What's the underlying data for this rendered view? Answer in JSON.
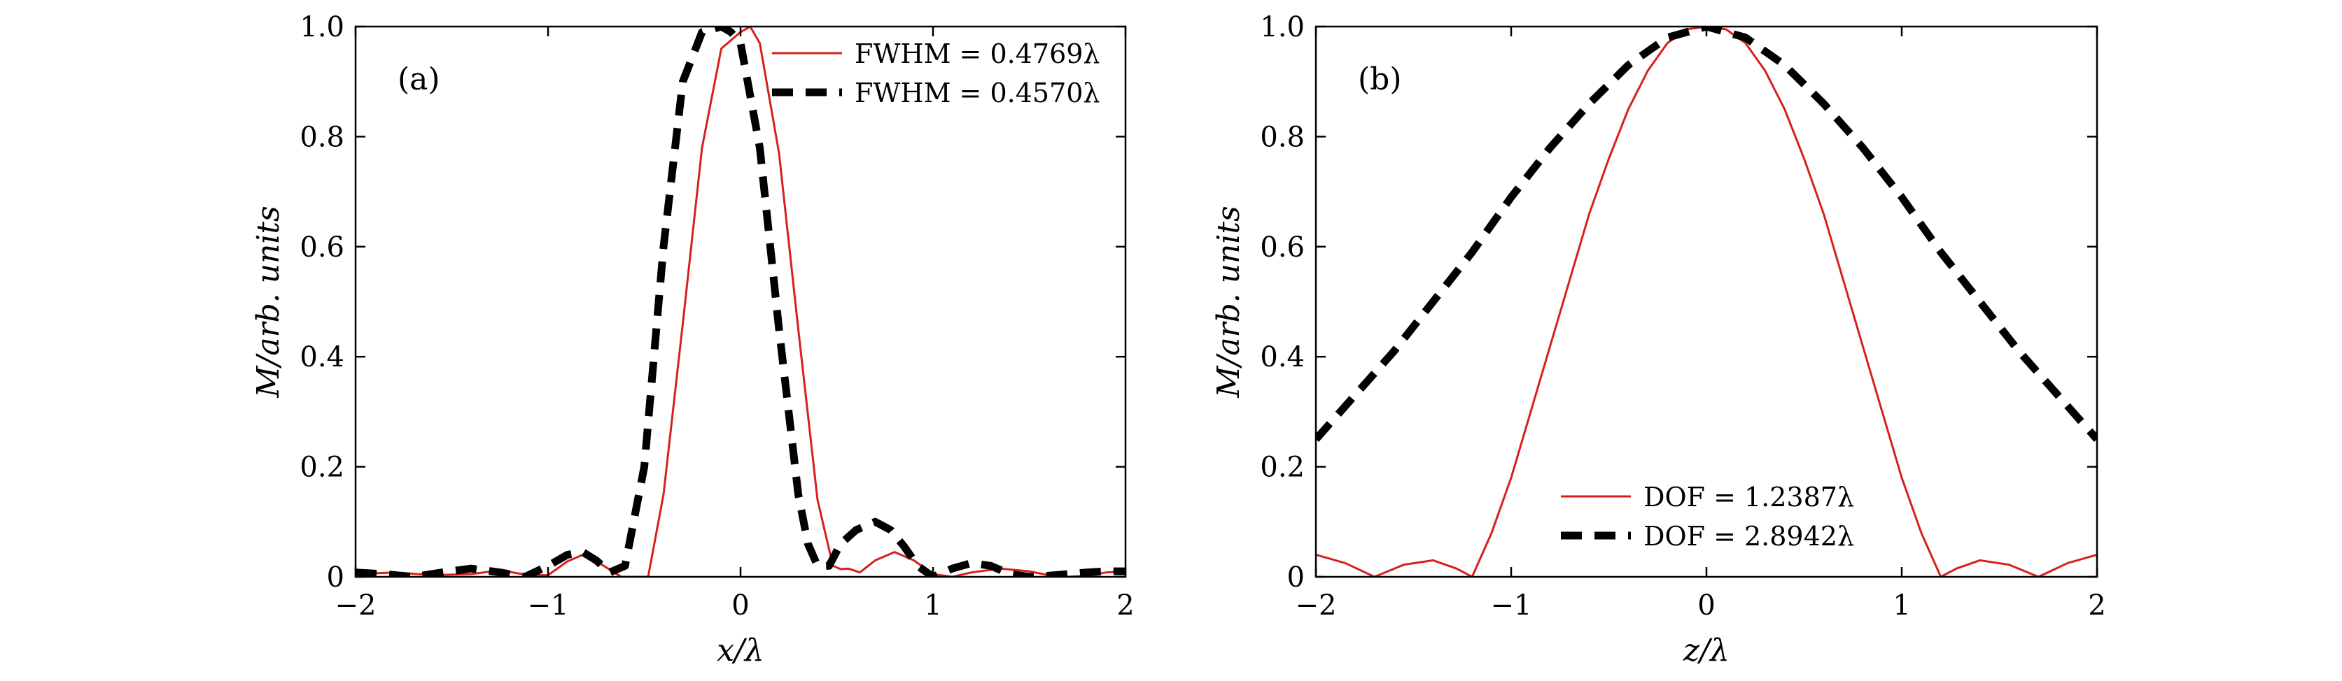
{
  "chart_data": [
    {
      "type": "line",
      "panel_label": "(a)",
      "xlabel": "x/λ",
      "ylabel": "M/arb. units",
      "xlim": [
        -2,
        2
      ],
      "ylim": [
        0,
        1
      ],
      "xticks": [
        -2,
        -1,
        0,
        1,
        2
      ],
      "xtick_labels": [
        "−2",
        "−1",
        "0",
        "1",
        "2"
      ],
      "yticks": [
        0,
        0.2,
        0.4,
        0.6,
        0.8,
        1.0
      ],
      "ytick_labels": [
        "0",
        "0.2",
        "0.4",
        "0.6",
        "0.8",
        "1.0"
      ],
      "legend_position": "top-right",
      "series": [
        {
          "name": "FWHM = 0.4769λ",
          "color": "#d62020",
          "style": "solid",
          "x": [
            -2.0,
            -1.8,
            -1.6,
            -1.4,
            -1.25,
            -1.1,
            -1.0,
            -0.9,
            -0.82,
            -0.72,
            -0.62,
            -0.54,
            -0.48,
            -0.4,
            -0.3,
            -0.2,
            -0.1,
            0.0,
            0.05,
            0.1,
            0.2,
            0.3,
            0.4,
            0.48,
            0.52,
            0.56,
            0.62,
            0.7,
            0.8,
            0.9,
            1.0,
            1.1,
            1.2,
            1.35,
            1.5,
            1.6,
            1.7,
            1.8,
            1.9,
            2.0
          ],
          "y": [
            0.005,
            0.008,
            0.003,
            0.005,
            0.012,
            0.003,
            0.003,
            0.028,
            0.04,
            0.022,
            0.0,
            0.0,
            0.0,
            0.15,
            0.46,
            0.78,
            0.96,
            0.99,
            1.0,
            0.97,
            0.77,
            0.45,
            0.14,
            0.02,
            0.014,
            0.015,
            0.008,
            0.03,
            0.045,
            0.03,
            0.005,
            0.0,
            0.008,
            0.015,
            0.01,
            0.003,
            0.0,
            0.002,
            0.008,
            0.01
          ]
        },
        {
          "name": "FWHM = 0.4570λ",
          "color": "#000000",
          "style": "dashed",
          "x": [
            -2.0,
            -1.85,
            -1.7,
            -1.55,
            -1.4,
            -1.25,
            -1.12,
            -1.0,
            -0.9,
            -0.82,
            -0.75,
            -0.68,
            -0.6,
            -0.5,
            -0.4,
            -0.3,
            -0.2,
            -0.1,
            -0.05,
            0.0,
            0.1,
            0.2,
            0.3,
            0.35,
            0.4,
            0.46,
            0.52,
            0.6,
            0.7,
            0.78,
            0.85,
            0.92,
            1.0,
            1.1,
            1.2,
            1.3,
            1.4,
            1.5,
            1.6,
            1.7,
            1.8,
            1.9,
            2.0
          ],
          "y": [
            0.008,
            0.005,
            0.0,
            0.008,
            0.015,
            0.008,
            0.0,
            0.02,
            0.04,
            0.045,
            0.03,
            0.008,
            0.02,
            0.2,
            0.6,
            0.9,
            0.99,
            1.0,
            0.99,
            0.97,
            0.78,
            0.45,
            0.15,
            0.06,
            0.02,
            0.02,
            0.06,
            0.085,
            0.1,
            0.085,
            0.055,
            0.02,
            0.0,
            0.015,
            0.025,
            0.02,
            0.005,
            0.0,
            0.002,
            0.005,
            0.008,
            0.01,
            0.01
          ]
        }
      ]
    },
    {
      "type": "line",
      "panel_label": "(b)",
      "xlabel": "z/λ",
      "ylabel": "M/arb. units",
      "xlim": [
        -2,
        2
      ],
      "ylim": [
        0,
        1
      ],
      "xticks": [
        -2,
        -1,
        0,
        1,
        2
      ],
      "xtick_labels": [
        "−2",
        "−1",
        "0",
        "1",
        "2"
      ],
      "yticks": [
        0,
        0.2,
        0.4,
        0.6,
        0.8,
        1.0
      ],
      "ytick_labels": [
        "0",
        "0.2",
        "0.4",
        "0.6",
        "0.8",
        "1.0"
      ],
      "legend_position": "bottom-center",
      "series": [
        {
          "name": "DOF = 1.2387λ",
          "color": "#d62020",
          "style": "solid",
          "x": [
            -2.0,
            -1.85,
            -1.7,
            -1.55,
            -1.4,
            -1.28,
            -1.2,
            -1.1,
            -1.0,
            -0.9,
            -0.8,
            -0.7,
            -0.6,
            -0.5,
            -0.4,
            -0.3,
            -0.2,
            -0.1,
            0.0,
            0.1,
            0.2,
            0.3,
            0.4,
            0.5,
            0.6,
            0.7,
            0.8,
            0.9,
            1.0,
            1.1,
            1.2,
            1.28,
            1.4,
            1.55,
            1.7,
            1.85,
            2.0
          ],
          "y": [
            0.04,
            0.025,
            0.0,
            0.022,
            0.03,
            0.015,
            0.0,
            0.08,
            0.18,
            0.3,
            0.42,
            0.54,
            0.66,
            0.76,
            0.85,
            0.92,
            0.97,
            0.995,
            1.0,
            0.995,
            0.97,
            0.92,
            0.85,
            0.76,
            0.66,
            0.54,
            0.42,
            0.3,
            0.18,
            0.08,
            0.0,
            0.015,
            0.03,
            0.022,
            0.0,
            0.025,
            0.04
          ]
        },
        {
          "name": "DOF = 2.8942λ",
          "color": "#000000",
          "style": "dashed",
          "x": [
            -2.0,
            -1.8,
            -1.6,
            -1.4,
            -1.2,
            -1.0,
            -0.8,
            -0.6,
            -0.4,
            -0.2,
            0.0,
            0.2,
            0.4,
            0.6,
            0.8,
            1.0,
            1.2,
            1.4,
            1.6,
            1.8,
            2.0
          ],
          "y": [
            0.25,
            0.33,
            0.41,
            0.5,
            0.59,
            0.69,
            0.78,
            0.86,
            0.93,
            0.98,
            1.0,
            0.98,
            0.93,
            0.86,
            0.78,
            0.69,
            0.59,
            0.5,
            0.41,
            0.33,
            0.25
          ]
        }
      ]
    }
  ]
}
